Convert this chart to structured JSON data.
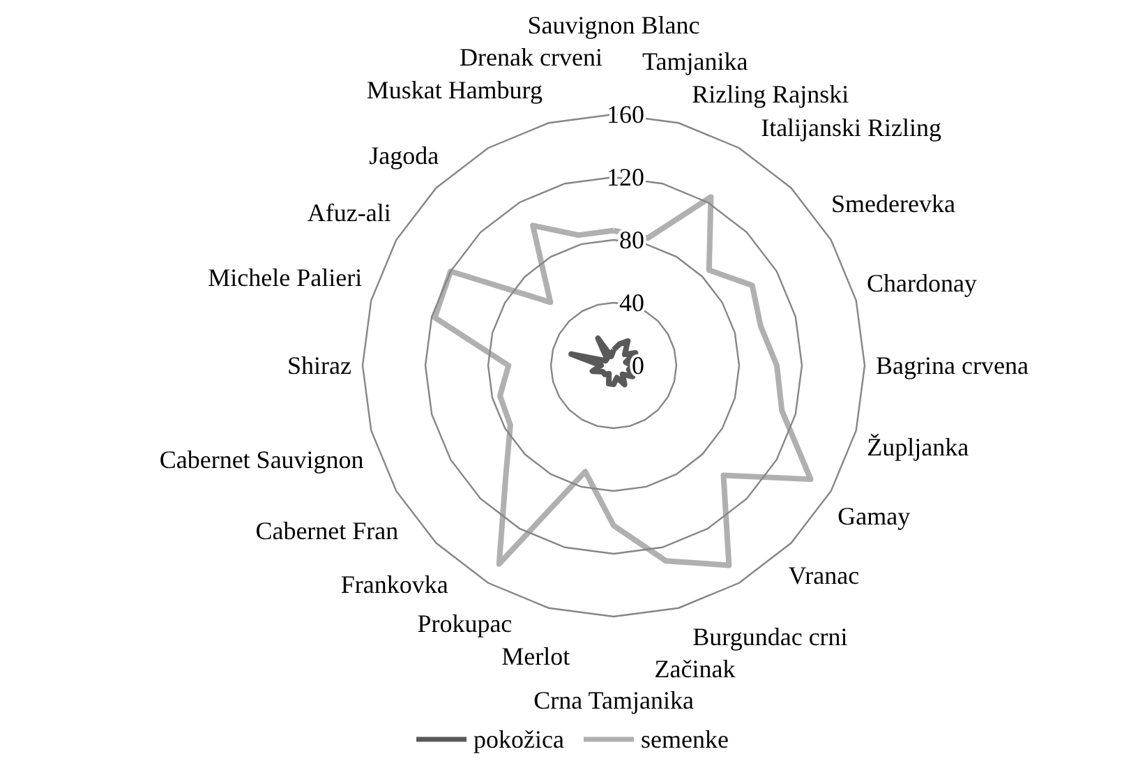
{
  "chart_data": {
    "type": "radar",
    "categories": [
      "Sauvignon Blanc",
      "Tamjanika",
      "Rizling Rajnski",
      "Italijanski Rizling",
      "Smederevka",
      "Chardonay",
      "Bagrina crvena",
      "Župljanka",
      "Gamay",
      "Vranac",
      "Burgundac crni",
      "Začinak",
      "Crna Tamjanika",
      "Merlot",
      "Prokupac",
      "Frankovka",
      "Cabernet Fran",
      "Cabernet Sauvignon",
      "Shiraz",
      "Michele Palieri",
      "Afuz-ali",
      "Jagoda",
      "Muskat Hamburg",
      "Drenak crveni"
    ],
    "series": [
      {
        "name": "pokožica",
        "color": "#595959",
        "values": [
          10,
          14,
          18,
          10,
          16,
          8,
          12,
          10,
          14,
          8,
          14,
          8,
          12,
          12,
          6,
          8,
          8,
          14,
          8,
          28,
          6,
          6,
          20,
          6
        ]
      },
      {
        "name": "semenke",
        "color": "#b0b0b0",
        "values": [
          86,
          84,
          124,
          86,
          102,
          97,
          104,
          111,
          145,
          99,
          147,
          129,
          102,
          70,
          146,
          97,
          76,
          75,
          67,
          118,
          120,
          57,
          103,
          86
        ]
      }
    ],
    "ylim": [
      0,
      160
    ],
    "yticks": [
      0,
      40,
      80,
      120,
      160
    ],
    "legend": "bottom",
    "marker": "none",
    "line_style": "solid"
  }
}
